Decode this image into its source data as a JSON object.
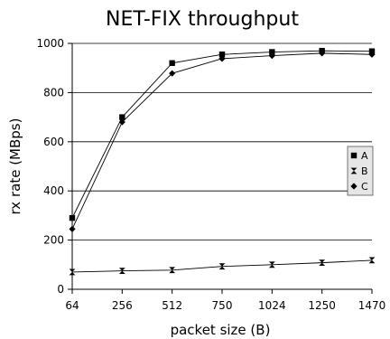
{
  "chart_data": {
    "type": "line",
    "title": "NET-FIX throughput",
    "xlabel": "packet size (B)",
    "ylabel": "rx rate (MBps)",
    "categories": [
      "64",
      "256",
      "512",
      "750",
      "1024",
      "1250",
      "1470"
    ],
    "ylim": [
      0,
      1000
    ],
    "yticks": [
      "0",
      "200",
      "400",
      "600",
      "800",
      "1000"
    ],
    "grid": true,
    "legend_position": "right",
    "series": [
      {
        "name": "A",
        "marker": "square",
        "values": [
          290,
          700,
          920,
          955,
          965,
          970,
          968
        ]
      },
      {
        "name": "B",
        "marker": "bowtie",
        "values": [
          70,
          75,
          78,
          93,
          100,
          108,
          118
        ]
      },
      {
        "name": "C",
        "marker": "diamond",
        "values": [
          245,
          680,
          878,
          938,
          950,
          960,
          955
        ]
      }
    ],
    "colors": {
      "line": "#000000",
      "grid": "#000000",
      "legend_bg": "#e6e6e6"
    }
  }
}
